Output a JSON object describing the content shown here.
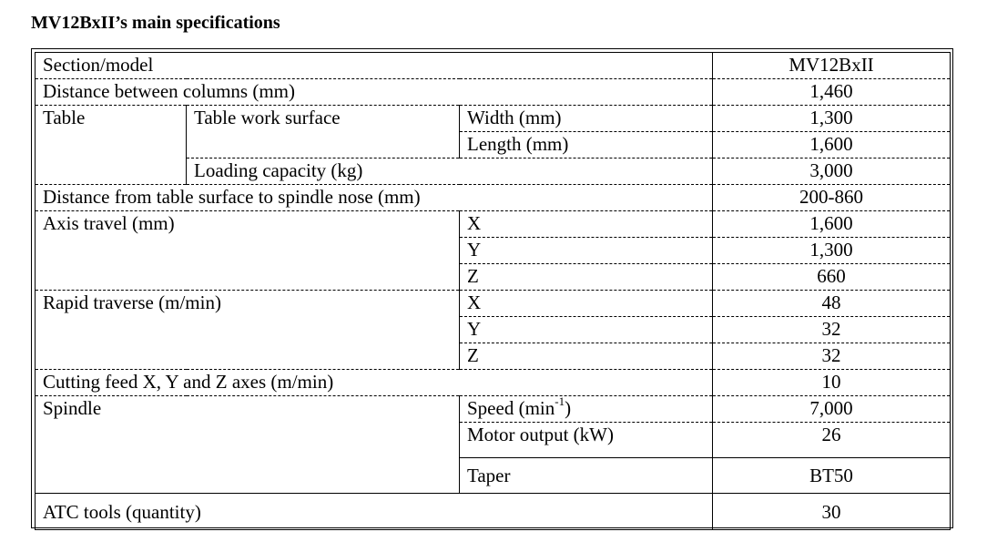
{
  "title": "MV12BxII’s main specifications",
  "rows": {
    "header": {
      "label": "Section/model",
      "value": "MV12BxII"
    },
    "distance_columns": {
      "label": "Distance between columns (mm)",
      "value": "1,460"
    },
    "table": {
      "label": "Table",
      "work_surface": "Table work surface",
      "width_label": "Width (mm)",
      "width_value": "1,300",
      "length_label": "Length (mm)",
      "length_value": "1,600",
      "loading_label": "Loading capacity (kg)",
      "loading_value": "3,000"
    },
    "distance_spindle": {
      "label": "Distance from table surface to spindle nose (mm)",
      "value": "200-860"
    },
    "axis_travel": {
      "label": "Axis travel (mm)",
      "x_label": "X",
      "x_value": "1,600",
      "y_label": "Y",
      "y_value": "1,300",
      "z_label": "Z",
      "z_value": "660"
    },
    "rapid_traverse": {
      "label": "Rapid traverse (m/min)",
      "x_label": "X",
      "x_value": "48",
      "y_label": "Y",
      "y_value": "32",
      "z_label": "Z",
      "z_value": "32"
    },
    "cutting_feed": {
      "label": "Cutting feed X, Y and Z axes (m/min)",
      "value": "10"
    },
    "spindle": {
      "label": "Spindle",
      "speed_label": "Speed (min",
      "speed_sup": "-1",
      "speed_close": ")",
      "speed_value": "7,000",
      "motor_label": "Motor output (kW)",
      "motor_value": "26",
      "taper_label": "Taper",
      "taper_value": "BT50"
    },
    "atc": {
      "label": "ATC tools (quantity)",
      "value": "30"
    }
  }
}
